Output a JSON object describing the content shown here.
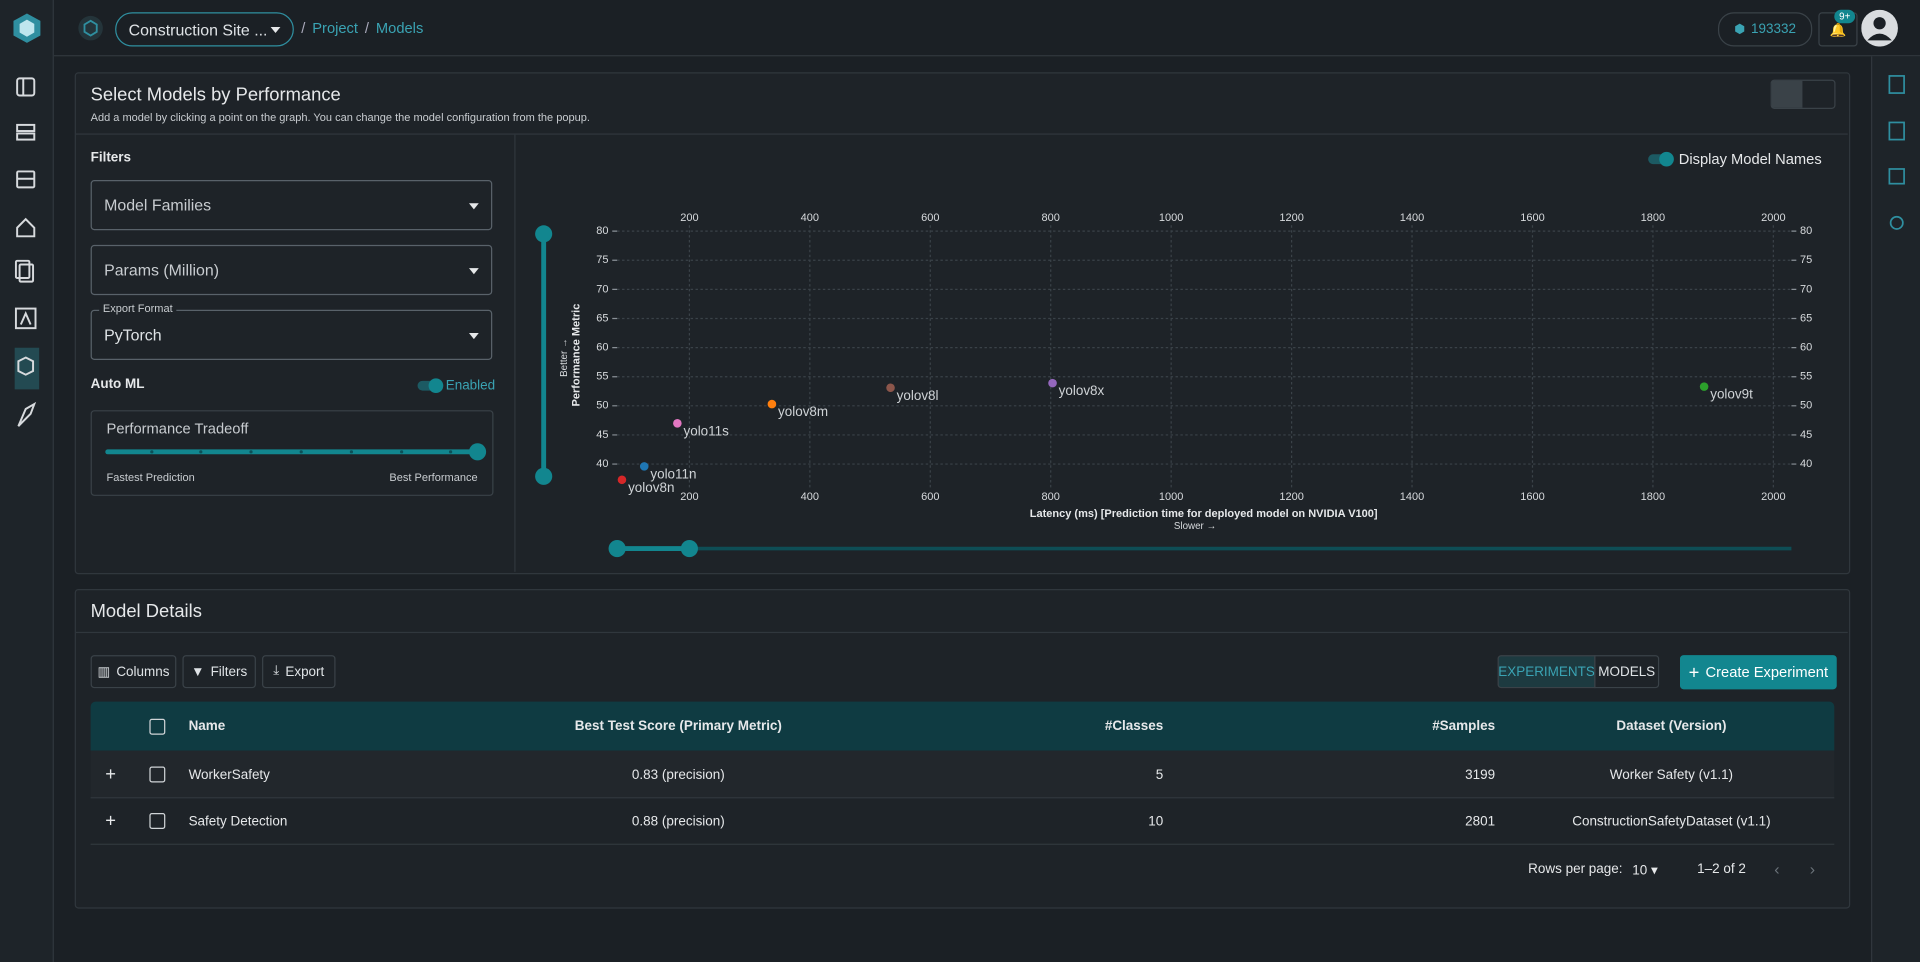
{
  "topbar": {
    "project": "Construction Site ...",
    "breadcrumb": [
      "Project",
      "Models"
    ],
    "credits": "193332",
    "notifications": "9+"
  },
  "performance_panel": {
    "title": "Select Models by Performance",
    "subtitle": "Add a model by clicking a point on the graph. You can change the model configuration from the popup.",
    "filters": {
      "heading": "Filters",
      "model_families": "Model Families",
      "params": "Params (Million)",
      "export_format_label": "Export Format",
      "export_format": "PyTorch",
      "auto_ml": "Auto ML",
      "auto_ml_state": "Enabled",
      "tradeoff_title": "Performance Tradeoff",
      "tradeoff_min": "Fastest Prediction",
      "tradeoff_max": "Best Performance"
    },
    "display_names": "Display Model Names"
  },
  "chart_data": {
    "type": "scatter",
    "xlabel": "Latency (ms) [Prediction time for deployed model on NVIDIA V100]",
    "xlabel_note": "Slower →",
    "ylabel": "Performance Metric",
    "ylabel_note": "Better →",
    "xlim": [
      80,
      2030
    ],
    "ylim": [
      36,
      81
    ],
    "xticks": [
      200,
      400,
      600,
      800,
      1000,
      1200,
      1400,
      1600,
      1800,
      2000
    ],
    "yticks": [
      40,
      45,
      50,
      55,
      60,
      65,
      70,
      75,
      80
    ],
    "grid": true,
    "series": [
      {
        "name": "yolov8n",
        "color": "#d62728",
        "x": [
          88
        ],
        "values": [
          37.3
        ]
      },
      {
        "name": "yolo11n",
        "color": "#1f77b4",
        "x": [
          125
        ],
        "values": [
          39.6
        ]
      },
      {
        "name": "yolo11s",
        "color": "#e377c2",
        "x": [
          180
        ],
        "values": [
          47
        ]
      },
      {
        "name": "yolov8m",
        "color": "#ff7f0e",
        "x": [
          337
        ],
        "values": [
          50.3
        ]
      },
      {
        "name": "yolov8l",
        "color": "#8c564b",
        "x": [
          534
        ],
        "values": [
          53.1
        ]
      },
      {
        "name": "yolov8x",
        "color": "#9467bd",
        "x": [
          803
        ],
        "values": [
          53.9
        ]
      },
      {
        "name": "yolov9t",
        "color": "#2ca02c",
        "x": [
          1885
        ],
        "values": [
          53.3
        ]
      }
    ]
  },
  "details": {
    "title": "Model Details",
    "toolbar": [
      "Columns",
      "Filters",
      "Export"
    ],
    "tabs": [
      "EXPERIMENTS",
      "MODELS"
    ],
    "create": "Create Experiment"
  },
  "table": {
    "headers": [
      "Name",
      "Best Test Score (Primary Metric)",
      "#Classes",
      "#Samples",
      "Dataset (Version)"
    ],
    "rows": [
      [
        "WorkerSafety",
        "0.83 (precision)",
        5,
        3199,
        "Worker Safety (v1.1)"
      ],
      [
        "Safety Detection",
        "0.88 (precision)",
        10,
        2801,
        "ConstructionSafetyDataset (v1.1)"
      ]
    ]
  },
  "pagination": {
    "rows_per_page_label": "Rows per page:",
    "rows_per_page": "10",
    "range": "1–2 of 2"
  }
}
